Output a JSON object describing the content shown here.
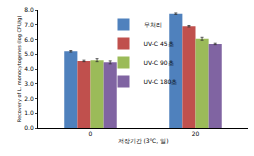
{
  "chart_data": {
    "type": "bar",
    "x_label": "저장기간 (3℃, 일)",
    "y_label": "Recovery of L. monocytogenes (log CFU/g)",
    "categories": [
      "0",
      "20"
    ],
    "series": [
      {
        "name": "무처리",
        "color": "#4f81bd",
        "values": [
          5.2,
          7.75
        ],
        "errors": [
          0.05,
          0.05
        ]
      },
      {
        "name": "UV-C 45초",
        "color": "#c0504d",
        "values": [
          4.55,
          6.9
        ],
        "errors": [
          0.05,
          0.05
        ]
      },
      {
        "name": "UV-C 90초",
        "color": "#9bbb59",
        "values": [
          4.6,
          6.05
        ],
        "errors": [
          0.1,
          0.1
        ]
      },
      {
        "name": "UV-C 180초",
        "color": "#8064a2",
        "values": [
          4.45,
          5.7
        ],
        "errors": [
          0.1,
          0.05
        ]
      }
    ],
    "ylim": [
      0,
      8
    ],
    "yticks": [
      {
        "value": 0,
        "label": "0.0"
      },
      {
        "value": 1,
        "label": "1.0"
      },
      {
        "value": 2,
        "label": "2.0"
      },
      {
        "value": 3,
        "label": "3.0"
      },
      {
        "value": 4,
        "label": "4.0"
      },
      {
        "value": 5,
        "label": "5.0"
      },
      {
        "value": 6,
        "label": "6.0"
      },
      {
        "value": 7,
        "label": "7.0"
      },
      {
        "value": 8,
        "label": "8.0"
      }
    ],
    "grid": false,
    "legend": "upper center"
  }
}
